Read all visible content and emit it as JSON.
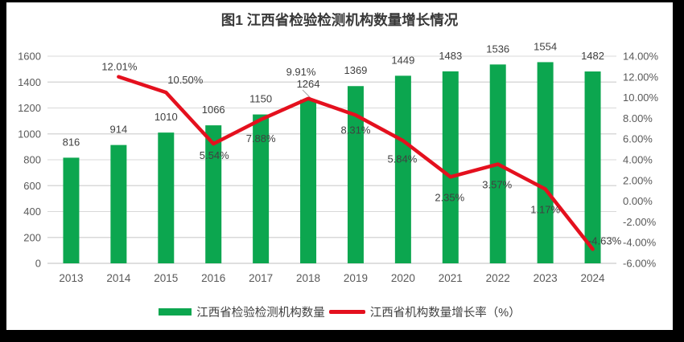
{
  "frame": {
    "background": "#000000",
    "surface_background": "#ffffff"
  },
  "chart_data": {
    "type": "combo-bar-line",
    "title": "图1 江西省检验检测机构数量增长情况",
    "categories": [
      "2013",
      "2014",
      "2015",
      "2016",
      "2017",
      "2018",
      "2019",
      "2020",
      "2021",
      "2022",
      "2023",
      "2024"
    ],
    "series": [
      {
        "name": "江西省检验检测机构数量",
        "type": "bar",
        "axis": "left",
        "color": "#0CA64F",
        "values": [
          816,
          914,
          1010,
          1066,
          1150,
          1264,
          1369,
          1449,
          1483,
          1536,
          1554,
          1482
        ],
        "data_labels": [
          "816",
          "914",
          "1010",
          "1066",
          "1150",
          "1264",
          "1369",
          "1449",
          "1483",
          "1536",
          "1554",
          "1482"
        ]
      },
      {
        "name": "江西省机构数量增长率（%）",
        "type": "line",
        "axis": "right",
        "color": "#E4101E",
        "values": [
          null,
          12.01,
          10.5,
          5.54,
          7.88,
          9.91,
          8.31,
          5.84,
          2.35,
          3.57,
          1.17,
          -4.63
        ],
        "data_labels": [
          "",
          "12.01%",
          "10.50%",
          "5.54%",
          "7.88%",
          "9.91%",
          "8.31%",
          "5.84%",
          "2.35%",
          "3.57%",
          "1.17%",
          "-4.63%"
        ]
      }
    ],
    "left_axis": {
      "min": 0,
      "max": 1600,
      "step": 200,
      "tick_labels": [
        "0",
        "200",
        "400",
        "600",
        "800",
        "1000",
        "1200",
        "1400",
        "1600"
      ]
    },
    "right_axis": {
      "min": -6,
      "max": 14,
      "step": 2,
      "tick_labels": [
        "-6.00%",
        "-4.00%",
        "-2.00%",
        "0.00%",
        "2.00%",
        "4.00%",
        "6.00%",
        "8.00%",
        "10.00%",
        "12.00%",
        "14.00%"
      ]
    },
    "grid": true,
    "legend_position": "bottom",
    "colors": {
      "gridline": "#D9D9D9",
      "axis_line": "#BFBFBF",
      "tick_text": "#595959",
      "data_label_text": "#404040"
    }
  }
}
